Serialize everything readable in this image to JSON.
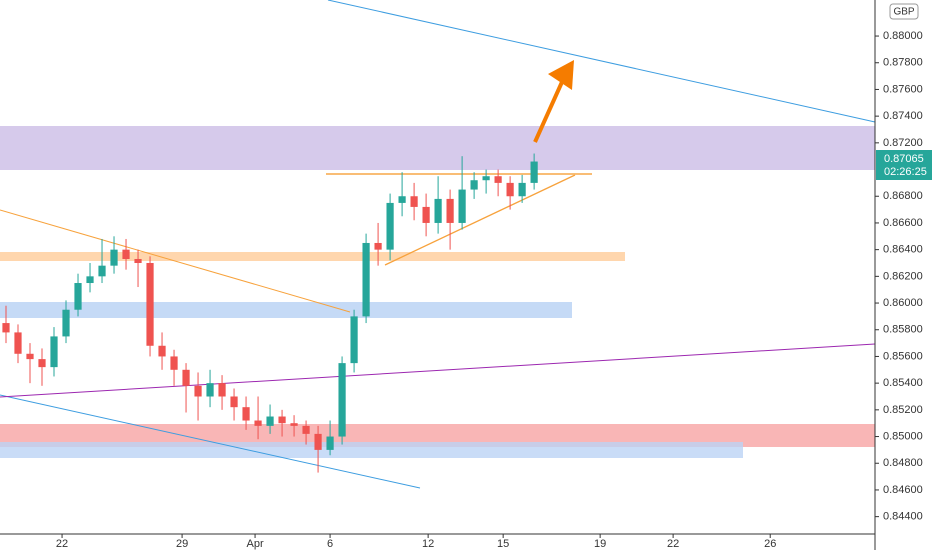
{
  "chart_data": {
    "type": "candlestick",
    "currency": "GBP",
    "last_price_label": "0.87065",
    "countdown": "02:26:25",
    "open": [
      0.8585,
      0.8578,
      0.8562,
      0.8558,
      0.8552,
      0.8575,
      0.8595,
      0.8615,
      0.862,
      0.8628,
      0.864,
      0.8633,
      0.863,
      0.8568,
      0.856,
      0.855,
      0.8538,
      0.853,
      0.854,
      0.853,
      0.8522,
      0.8512,
      0.8508,
      0.8515,
      0.851,
      0.8508,
      0.8502,
      0.849,
      0.85,
      0.8555,
      0.859,
      0.8645,
      0.864,
      0.8675,
      0.868,
      0.8672,
      0.866,
      0.8678,
      0.866,
      0.8685,
      0.8692,
      0.8695,
      0.869,
      0.868,
      0.869
    ],
    "high": [
      0.8598,
      0.8584,
      0.857,
      0.8566,
      0.8582,
      0.8602,
      0.8622,
      0.863,
      0.8648,
      0.865,
      0.8648,
      0.864,
      0.8635,
      0.8578,
      0.8565,
      0.8555,
      0.8548,
      0.855,
      0.8546,
      0.8536,
      0.853,
      0.853,
      0.8524,
      0.852,
      0.8516,
      0.8512,
      0.8508,
      0.8512,
      0.856,
      0.8595,
      0.8652,
      0.866,
      0.8682,
      0.8698,
      0.869,
      0.8682,
      0.8695,
      0.8685,
      0.871,
      0.8698,
      0.87,
      0.87,
      0.8695,
      0.8696,
      0.8712
    ],
    "low": [
      0.857,
      0.8555,
      0.854,
      0.8538,
      0.8545,
      0.857,
      0.859,
      0.8608,
      0.8615,
      0.8622,
      0.8625,
      0.8612,
      0.856,
      0.855,
      0.8538,
      0.8518,
      0.8512,
      0.8522,
      0.852,
      0.8512,
      0.8505,
      0.8498,
      0.8502,
      0.85,
      0.85,
      0.8494,
      0.8473,
      0.8486,
      0.8494,
      0.8548,
      0.8585,
      0.8628,
      0.8632,
      0.8665,
      0.8662,
      0.865,
      0.8652,
      0.864,
      0.8655,
      0.8678,
      0.8682,
      0.868,
      0.867,
      0.8675,
      0.8685
    ],
    "close": [
      0.8578,
      0.8562,
      0.8558,
      0.8552,
      0.8575,
      0.8595,
      0.8615,
      0.862,
      0.8628,
      0.864,
      0.8633,
      0.863,
      0.8568,
      0.856,
      0.855,
      0.8538,
      0.853,
      0.854,
      0.853,
      0.8522,
      0.8512,
      0.8508,
      0.8515,
      0.851,
      0.8508,
      0.8502,
      0.849,
      0.85,
      0.8555,
      0.859,
      0.8645,
      0.864,
      0.8675,
      0.868,
      0.8672,
      0.866,
      0.8678,
      0.866,
      0.8685,
      0.8692,
      0.8695,
      0.869,
      0.868,
      0.869,
      0.8706
    ],
    "up_color": "#26a69a",
    "down_color": "#ef5350",
    "xlim": [
      -0.5,
      72.4
    ],
    "xticks": [
      {
        "value": 4.67,
        "label": "22"
      },
      {
        "value": 14.67,
        "label": "29"
      },
      {
        "value": 20.75,
        "label": "Apr"
      },
      {
        "value": 27,
        "label": "6"
      },
      {
        "value": 35.17,
        "label": "12"
      },
      {
        "value": 41.42,
        "label": "15"
      },
      {
        "value": 49.5,
        "label": "19"
      },
      {
        "value": 55.58,
        "label": "22"
      },
      {
        "value": 63.67,
        "label": "26"
      }
    ],
    "ylim": [
      0.8427,
      0.8827
    ],
    "yticks": [
      {
        "value": 0.844,
        "label": "0.84400"
      },
      {
        "value": 0.846,
        "label": "0.84600"
      },
      {
        "value": 0.848,
        "label": "0.84800"
      },
      {
        "value": 0.85,
        "label": "0.85000"
      },
      {
        "value": 0.852,
        "label": "0.85200"
      },
      {
        "value": 0.854,
        "label": "0.85400"
      },
      {
        "value": 0.856,
        "label": "0.85600"
      },
      {
        "value": 0.858,
        "label": "0.85800"
      },
      {
        "value": 0.86,
        "label": "0.86000"
      },
      {
        "value": 0.862,
        "label": "0.86200"
      },
      {
        "value": 0.864,
        "label": "0.86400"
      },
      {
        "value": 0.866,
        "label": "0.86600"
      },
      {
        "value": 0.868,
        "label": "0.86800"
      },
      {
        "value": 0.872,
        "label": "0.87200"
      },
      {
        "value": 0.874,
        "label": "0.87400"
      },
      {
        "value": 0.876,
        "label": "0.87600"
      },
      {
        "value": 0.878,
        "label": "0.87800"
      },
      {
        "value": 0.88,
        "label": "0.88000"
      }
    ]
  }
}
